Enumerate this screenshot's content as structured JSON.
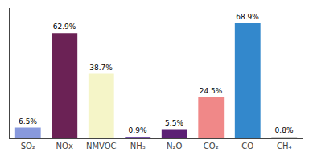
{
  "chart_data": {
    "type": "bar",
    "categories": [
      "SO₂",
      "NOx",
      "NMVOC",
      "NH₃",
      "N₂O",
      "CO₂",
      "CO",
      "CH₄"
    ],
    "values": [
      6.5,
      62.9,
      38.7,
      0.9,
      5.5,
      24.5,
      68.9,
      0.8
    ],
    "value_labels": [
      "6.5%",
      "62.9%",
      "38.7%",
      "0.9%",
      "5.5%",
      "24.5%",
      "68.9%",
      "0.8%"
    ],
    "colors": [
      "#8899dd",
      "#6b2255",
      "#f5f5c8",
      "#7755aa",
      "#5c2075",
      "#f08888",
      "#3388cc",
      "#cccccc"
    ],
    "data_labels": true,
    "ylim": [
      0,
      78
    ],
    "tick_labels": "x",
    "grid": false
  }
}
